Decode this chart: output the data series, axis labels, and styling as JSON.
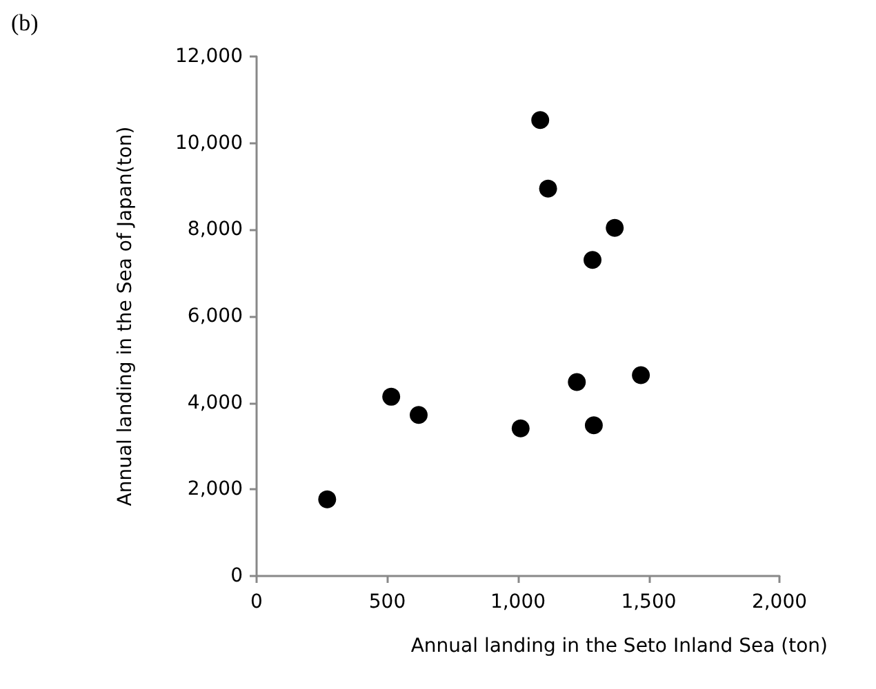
{
  "chart_data": {
    "type": "scatter",
    "xlabel": "Annual landing in the Seto Inland Sea (ton)",
    "ylabel": "Annual landing in the Sea of Japan(ton)",
    "annotations": [
      "(b)"
    ],
    "series": [
      {
        "color": "#000000",
        "x": [
          270,
          515,
          620,
          1010,
          1085,
          1115,
          1370,
          1285,
          1225,
          1470,
          1290
        ],
        "values": [
          1770,
          4140,
          3720,
          3410,
          10530,
          8950,
          8040,
          7300,
          4480,
          4640,
          3480
        ]
      }
    ],
    "xlim": [
      0,
      2000
    ],
    "xticks": [
      0,
      500,
      {
        "value": 1000,
        "label": "1,000"
      },
      {
        "value": 1500,
        "label": "1,500"
      },
      {
        "value": 2000,
        "label": "2,000"
      }
    ],
    "ylim": [
      0,
      12000
    ],
    "yticks": [
      0,
      {
        "value": 2000,
        "label": "2,000"
      },
      {
        "value": 4000,
        "label": "4,000"
      },
      {
        "value": 6000,
        "label": "6,000"
      },
      {
        "value": 8000,
        "label": "8,000"
      },
      {
        "value": 10000,
        "label": "10,000"
      },
      {
        "value": 12000,
        "label": "12,000"
      }
    ],
    "grid": false,
    "marker": "circle"
  }
}
